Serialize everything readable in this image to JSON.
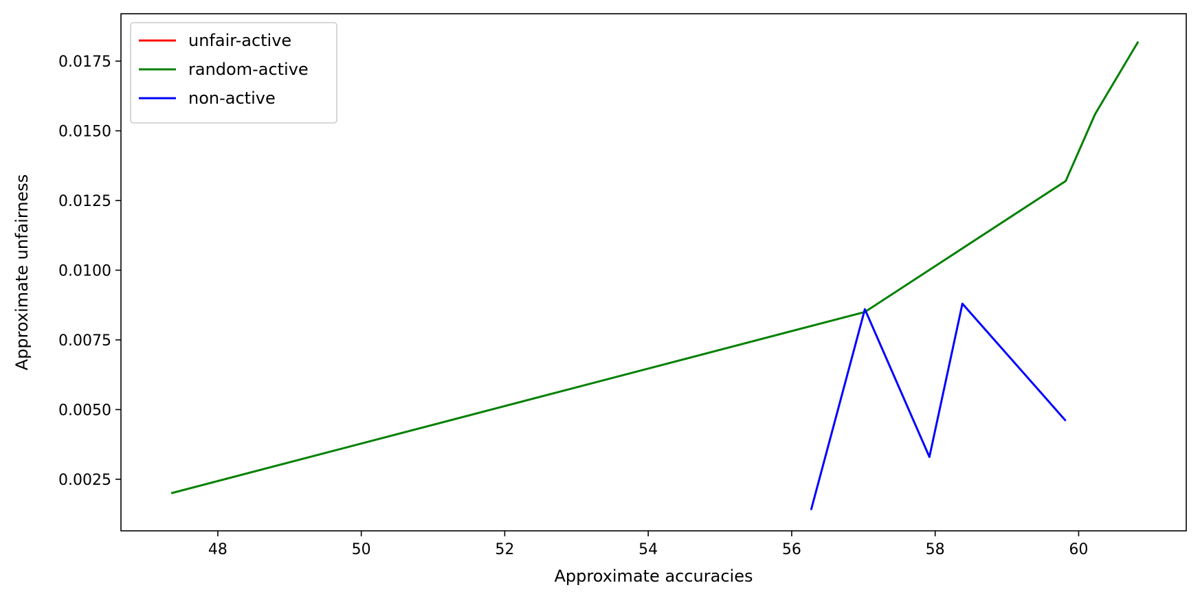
{
  "chart_data": {
    "type": "line",
    "title": "",
    "xlabel": "Approximate accuracies",
    "ylabel": "Approximate unfairness",
    "xlim": [
      46.65,
      61.5
    ],
    "ylim": [
      0.00065,
      0.0192
    ],
    "xticks": [
      48,
      50,
      52,
      54,
      56,
      58,
      60
    ],
    "xtick_labels": [
      "48",
      "50",
      "52",
      "54",
      "56",
      "58",
      "60"
    ],
    "yticks": [
      0.0025,
      0.005,
      0.0075,
      0.01,
      0.0125,
      0.015,
      0.0175
    ],
    "ytick_labels": [
      "0.0025",
      "0.0050",
      "0.0075",
      "0.0100",
      "0.0125",
      "0.0150",
      "0.0175"
    ],
    "grid": false,
    "legend_position": "top-left",
    "series": [
      {
        "name": "unfair-active",
        "color": "#ff0000",
        "x": [],
        "y": []
      },
      {
        "name": "random-active",
        "color": "#008000",
        "x": [
          47.35,
          57.02,
          59.82,
          60.23,
          60.83
        ],
        "y": [
          0.002,
          0.0085,
          0.0132,
          0.0156,
          0.0182
        ]
      },
      {
        "name": "non-active",
        "color": "#0000ff",
        "x": [
          56.27,
          57.02,
          57.92,
          58.38,
          59.82
        ],
        "y": [
          0.0014,
          0.0086,
          0.0033,
          0.0088,
          0.0046
        ]
      }
    ]
  }
}
